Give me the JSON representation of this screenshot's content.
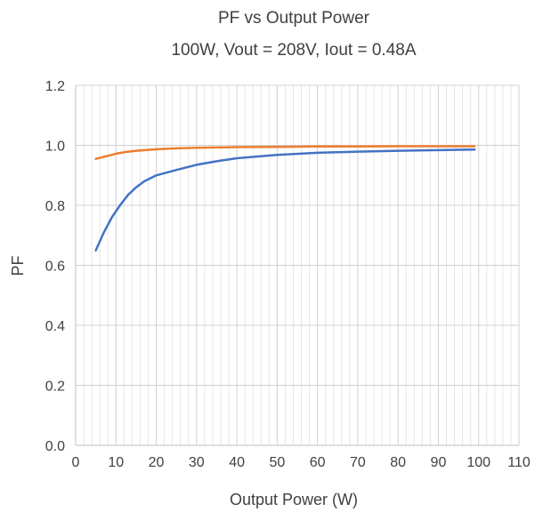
{
  "chart_data": {
    "type": "line",
    "title": "PF vs Output Power",
    "subtitle": "100W, Vout = 208V, Iout = 0.48A",
    "xlabel": "Output Power (W)",
    "ylabel": "PF",
    "xlim": [
      0,
      110
    ],
    "ylim": [
      0,
      1.2
    ],
    "xticks": [
      0,
      10,
      20,
      30,
      40,
      50,
      60,
      70,
      80,
      90,
      100,
      110
    ],
    "xtick_labels": [
      "0",
      "10",
      "20",
      "30",
      "40",
      "50",
      "60",
      "70",
      "80",
      "90",
      "100",
      "110"
    ],
    "yticks": [
      0,
      0.2,
      0.4,
      0.6,
      0.8,
      1.0,
      1.2
    ],
    "ytick_labels": [
      "0.0",
      "0.2",
      "0.4",
      "0.6",
      "0.8",
      "1.0",
      "1.2"
    ],
    "grid": true,
    "legend": "none",
    "series": [
      {
        "color": "#ED7D31",
        "x": [
          5,
          8,
          10,
          12,
          15,
          18,
          20,
          25,
          30,
          35,
          40,
          50,
          60,
          70,
          80,
          90,
          99
        ],
        "y": [
          0.955,
          0.965,
          0.972,
          0.977,
          0.982,
          0.985,
          0.987,
          0.99,
          0.992,
          0.993,
          0.994,
          0.995,
          0.996,
          0.996,
          0.997,
          0.997,
          0.997
        ]
      },
      {
        "color": "#4472C4",
        "x": [
          5,
          7,
          9,
          11,
          13,
          15,
          17,
          20,
          25,
          30,
          35,
          40,
          50,
          60,
          70,
          80,
          90,
          99
        ],
        "y": [
          0.65,
          0.71,
          0.76,
          0.8,
          0.835,
          0.86,
          0.88,
          0.9,
          0.918,
          0.935,
          0.947,
          0.957,
          0.968,
          0.975,
          0.979,
          0.982,
          0.984,
          0.986
        ]
      }
    ]
  }
}
